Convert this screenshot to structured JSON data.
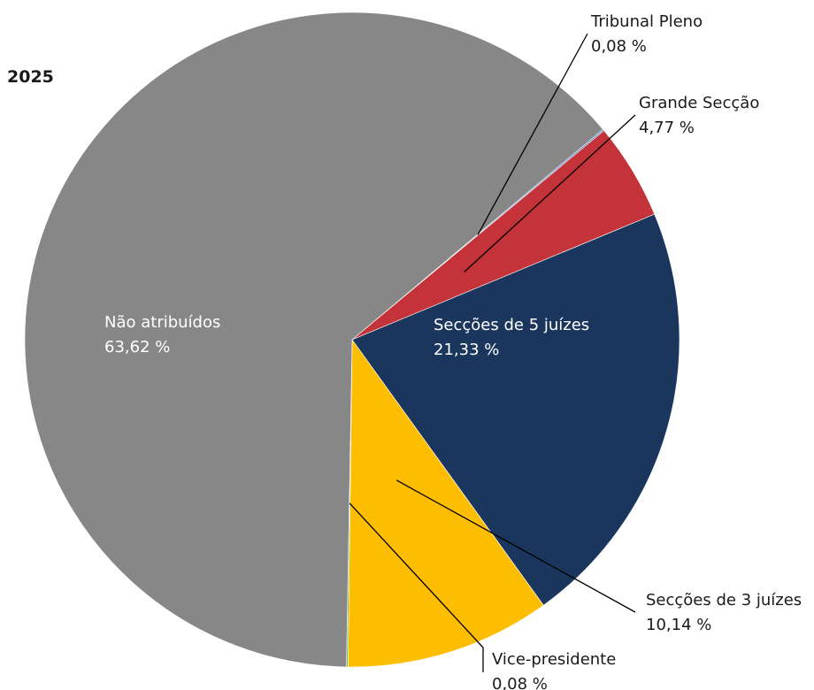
{
  "chart_data": {
    "type": "pie",
    "title": "2025",
    "slices": [
      {
        "label": "Tribunal Pleno",
        "value": 0.08,
        "display": "0,08 %",
        "color": "#4f81bd"
      },
      {
        "label": "Grande Secção",
        "value": 4.77,
        "display": "4,77 %",
        "color": "#c4323a"
      },
      {
        "label": "Secções de 5 juízes",
        "value": 21.33,
        "display": "21,33 %",
        "color": "#1b365d"
      },
      {
        "label": "Secções de 3 juízes",
        "value": 10.14,
        "display": "10,14 %",
        "color": "#fdbd00"
      },
      {
        "label": "Vice-presidente",
        "value": 0.08,
        "display": "0,08 %",
        "color": "#7ab648"
      },
      {
        "label": "Não atribuídos",
        "value": 63.62,
        "display": "63,62 %",
        "color": "#878787"
      }
    ]
  }
}
